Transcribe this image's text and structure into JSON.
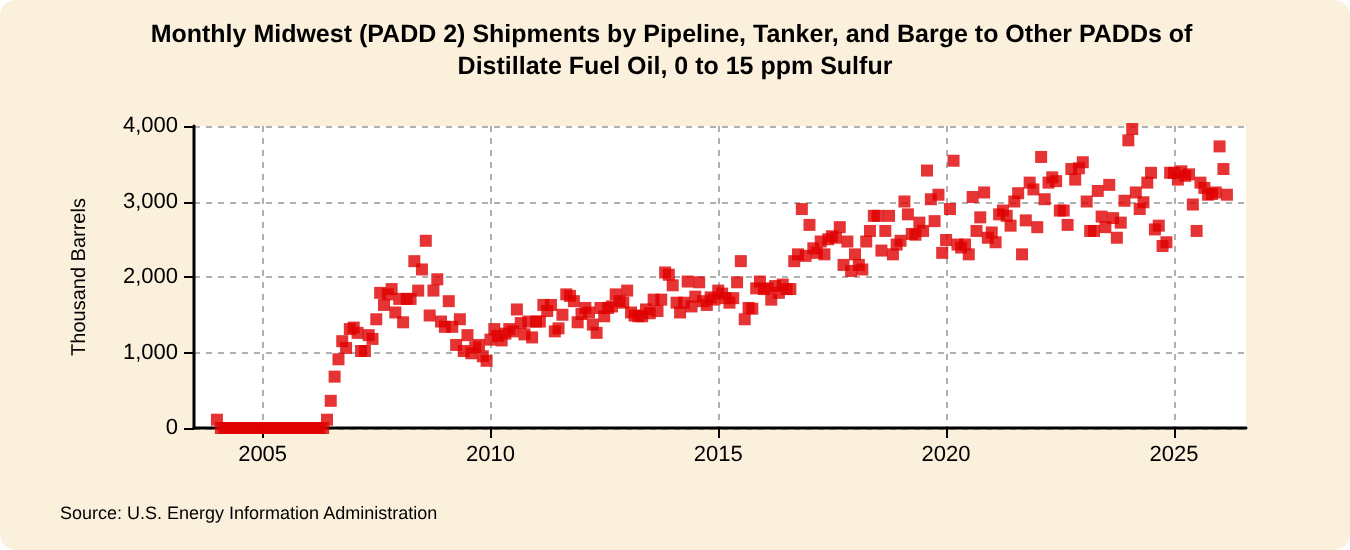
{
  "chart_data": {
    "type": "scatter",
    "title": "Monthly Midwest (PADD 2) Shipments by Pipeline, Tanker, and Barge to Other PADDs of Distillate Fuel Oil, 0 to 15 ppm Sulfur",
    "ylabel": "Thousand Barrels",
    "annotations": [
      "Source: U.S. Energy Information Administration"
    ],
    "xlim": [
      "2003-07",
      "2026-08"
    ],
    "xticks": [
      "2005",
      "2010",
      "2015",
      "2020",
      "2025"
    ],
    "ylim": [
      0,
      4000
    ],
    "yticks": [
      0,
      {
        "value": 1000,
        "label": "1,000"
      },
      {
        "value": 2000,
        "label": "2,000"
      },
      {
        "value": 3000,
        "label": "3,000"
      },
      {
        "value": 4000,
        "label": "4,000"
      }
    ],
    "grid": true,
    "marker": "square",
    "series": [
      {
        "color": "#e00000",
        "x": [
          "2004-01",
          "2004-02",
          "2004-03",
          "2004-04",
          "2004-05",
          "2004-06",
          "2004-07",
          "2004-08",
          "2004-09",
          "2004-10",
          "2004-11",
          "2004-12",
          "2005-01",
          "2005-02",
          "2005-03",
          "2005-04",
          "2005-05",
          "2005-06",
          "2005-07",
          "2005-08",
          "2005-09",
          "2005-10",
          "2005-11",
          "2005-12",
          "2006-01",
          "2006-02",
          "2006-03",
          "2006-04",
          "2006-05",
          "2006-06",
          "2006-07",
          "2006-08",
          "2006-09",
          "2006-10",
          "2006-11",
          "2006-12",
          "2007-01",
          "2007-02",
          "2007-03",
          "2007-04",
          "2007-05",
          "2007-06",
          "2007-07",
          "2007-08",
          "2007-09",
          "2007-10",
          "2007-11",
          "2007-12",
          "2008-01",
          "2008-02",
          "2008-03",
          "2008-04",
          "2008-05",
          "2008-06",
          "2008-07",
          "2008-08",
          "2008-09",
          "2008-10",
          "2008-11",
          "2008-12",
          "2009-01",
          "2009-02",
          "2009-03",
          "2009-04",
          "2009-05",
          "2009-06",
          "2009-07",
          "2009-08",
          "2009-09",
          "2009-10",
          "2009-11",
          "2009-12",
          "2010-01",
          "2010-02",
          "2010-03",
          "2010-04",
          "2010-05",
          "2010-06",
          "2010-07",
          "2010-08",
          "2010-09",
          "2010-10",
          "2010-11",
          "2010-12",
          "2011-01",
          "2011-02",
          "2011-03",
          "2011-04",
          "2011-05",
          "2011-06",
          "2011-07",
          "2011-08",
          "2011-09",
          "2011-10",
          "2011-11",
          "2011-12",
          "2012-01",
          "2012-02",
          "2012-03",
          "2012-04",
          "2012-05",
          "2012-06",
          "2012-07",
          "2012-08",
          "2012-09",
          "2012-10",
          "2012-11",
          "2012-12",
          "2013-01",
          "2013-02",
          "2013-03",
          "2013-04",
          "2013-05",
          "2013-06",
          "2013-07",
          "2013-08",
          "2013-09",
          "2013-10",
          "2013-11",
          "2013-12",
          "2014-01",
          "2014-02",
          "2014-03",
          "2014-04",
          "2014-05",
          "2014-06",
          "2014-07",
          "2014-08",
          "2014-09",
          "2014-10",
          "2014-11",
          "2014-12",
          "2015-01",
          "2015-02",
          "2015-03",
          "2015-04",
          "2015-05",
          "2015-06",
          "2015-07",
          "2015-08",
          "2015-09",
          "2015-10",
          "2015-11",
          "2015-12",
          "2016-01",
          "2016-02",
          "2016-03",
          "2016-04",
          "2016-05",
          "2016-06",
          "2016-07",
          "2016-08",
          "2016-09",
          "2016-10",
          "2016-11",
          "2016-12",
          "2017-01",
          "2017-02",
          "2017-03",
          "2017-04",
          "2017-05",
          "2017-06",
          "2017-07",
          "2017-08",
          "2017-09",
          "2017-10",
          "2017-11",
          "2017-12",
          "2018-01",
          "2018-02",
          "2018-03",
          "2018-04",
          "2018-05",
          "2018-06",
          "2018-07",
          "2018-08",
          "2018-09",
          "2018-10",
          "2018-11",
          "2018-12",
          "2019-01",
          "2019-02",
          "2019-03",
          "2019-04",
          "2019-05",
          "2019-06",
          "2019-07",
          "2019-08",
          "2019-09",
          "2019-10",
          "2019-11",
          "2019-12",
          "2020-01",
          "2020-02",
          "2020-03",
          "2020-04",
          "2020-05",
          "2020-06",
          "2020-07",
          "2020-08",
          "2020-09",
          "2020-10",
          "2020-11",
          "2020-12",
          "2021-01",
          "2021-02",
          "2021-03",
          "2021-04",
          "2021-05",
          "2021-06",
          "2021-07",
          "2021-08",
          "2021-09",
          "2021-10",
          "2021-11",
          "2021-12",
          "2022-01",
          "2022-02",
          "2022-03",
          "2022-04",
          "2022-05",
          "2022-06",
          "2022-07",
          "2022-08",
          "2022-09",
          "2022-10",
          "2022-11",
          "2022-12",
          "2023-01",
          "2023-02",
          "2023-03",
          "2023-04",
          "2023-05",
          "2023-06",
          "2023-07",
          "2023-08",
          "2023-09",
          "2023-10",
          "2023-11",
          "2023-12",
          "2024-01",
          "2024-02",
          "2024-03",
          "2024-04",
          "2024-05",
          "2024-06",
          "2024-07",
          "2024-08",
          "2024-09",
          "2024-10",
          "2024-11",
          "2024-12",
          "2025-01",
          "2025-02",
          "2025-03",
          "2025-04",
          "2025-05",
          "2025-06",
          "2025-07",
          "2025-08",
          "2025-09",
          "2025-10",
          "2025-11",
          "2025-12",
          "2026-01",
          "2026-02",
          "2026-03"
        ],
        "values": [
          110,
          0,
          0,
          0,
          0,
          0,
          0,
          0,
          0,
          0,
          0,
          0,
          0,
          0,
          0,
          0,
          0,
          0,
          0,
          0,
          0,
          0,
          0,
          0,
          0,
          0,
          0,
          0,
          0,
          110,
          360,
          680,
          910,
          1150,
          1060,
          1310,
          1330,
          1260,
          1020,
          1020,
          1230,
          1180,
          1440,
          1790,
          1630,
          1770,
          1840,
          1530,
          1710,
          1400,
          1710,
          1710,
          2210,
          1820,
          2100,
          2480,
          1490,
          1820,
          1970,
          1410,
          1340,
          1680,
          1340,
          1100,
          1440,
          1020,
          1230,
          990,
          1070,
          1100,
          950,
          890,
          1170,
          1310,
          1220,
          1160,
          1250,
          1310,
          1280,
          1570,
          1390,
          1240,
          1410,
          1200,
          1410,
          1410,
          1630,
          1550,
          1630,
          1280,
          1320,
          1500,
          1770,
          1750,
          1680,
          1400,
          1510,
          1590,
          1530,
          1370,
          1260,
          1590,
          1480,
          1590,
          1610,
          1770,
          1680,
          1660,
          1820,
          1530,
          1490,
          1480,
          1480,
          1570,
          1520,
          1700,
          1550,
          1700,
          2060,
          2030,
          1890,
          1660,
          1530,
          1660,
          1940,
          1610,
          1740,
          1930,
          1680,
          1630,
          1730,
          1700,
          1820,
          1780,
          1720,
          1660,
          1720,
          1930,
          2210,
          1440,
          1590,
          1580,
          1850,
          1940,
          1840,
          1850,
          1700,
          1880,
          1790,
          1900,
          1840,
          1840,
          2210,
          2300,
          2900,
          2280,
          2690,
          2380,
          2320,
          2470,
          2300,
          2500,
          2540,
          2520,
          2660,
          2160,
          2470,
          2080,
          2300,
          2160,
          2100,
          2470,
          2610,
          2810,
          2810,
          2350,
          2610,
          2810,
          2300,
          2430,
          2480,
          3000,
          2830,
          2570,
          2560,
          2720,
          2610,
          3410,
          3030,
          2740,
          3090,
          2320,
          2490,
          2900,
          3540,
          2430,
          2390,
          2430,
          2300,
          3060,
          2610,
          2790,
          3120,
          2520,
          2590,
          2460,
          2830,
          2880,
          2810,
          2680,
          3000,
          3110,
          2300,
          2750,
          3250,
          3160,
          2660,
          3590,
          3030,
          3250,
          3320,
          3270,
          2880,
          2880,
          2690,
          3430,
          3290,
          3440,
          3520,
          3000,
          2610,
          2610,
          3140,
          2800,
          2660,
          3220,
          2780,
          2520,
          2720,
          3010,
          3810,
          3960,
          3120,
          2900,
          2990,
          3250,
          3380,
          2630,
          2680,
          2410,
          2460,
          3380,
          3380,
          3290,
          3400,
          3340,
          3360,
          2960,
          2610,
          3250,
          3180,
          3090,
          3100,
          3120,
          3730,
          3430,
          3090
        ]
      }
    ]
  }
}
